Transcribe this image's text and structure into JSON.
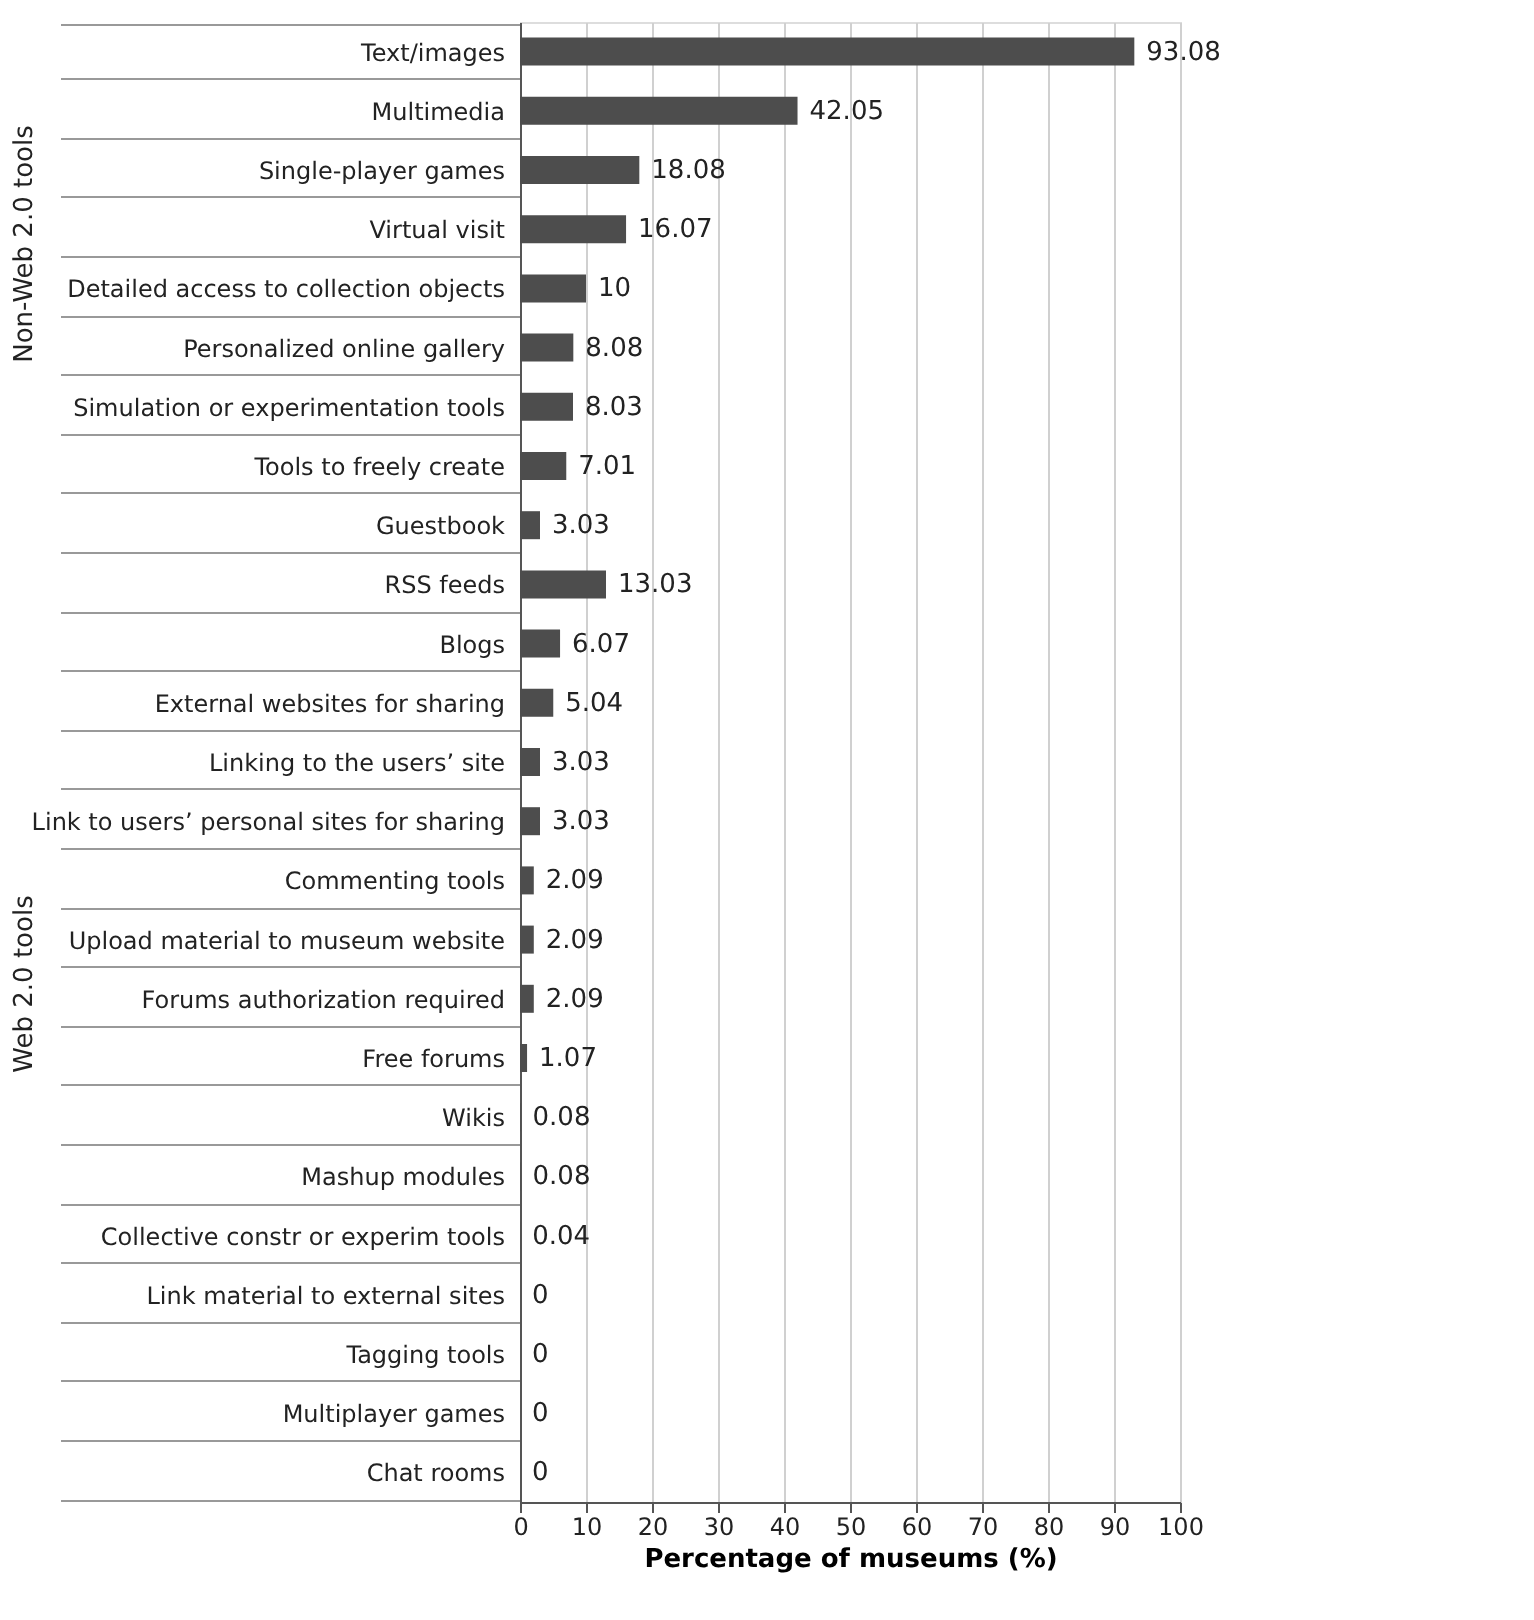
{
  "chart_data": {
    "type": "bar",
    "orientation": "horizontal",
    "xlabel": "Percentage of museums (%)",
    "categories": [
      "Text/images",
      "Multimedia",
      "Single-player games",
      "Virtual visit",
      "Detailed access to collection objects",
      "Personalized online gallery",
      "Simulation or experimentation tools",
      "Tools to freely create",
      "Guestbook",
      "RSS feeds",
      "Blogs",
      "External websites for sharing",
      "Linking to the users’ site",
      "Link to users’ personal sites for sharing",
      "Commenting tools",
      "Upload material to museum website",
      "Forums   authorization required",
      "Free forums",
      "Wikis",
      "Mashup modules",
      "Collective constr or experim tools",
      "Link material to external sites",
      "Tagging tools",
      "Multiplayer games",
      "Chat rooms"
    ],
    "values": [
      93.08,
      42.05,
      18.08,
      16.07,
      10,
      8.08,
      8.03,
      7.01,
      3.03,
      13.03,
      6.07,
      5.04,
      3.03,
      3.03,
      2.09,
      2.09,
      2.09,
      1.07,
      0.08,
      0.08,
      0.04,
      0,
      0,
      0,
      0
    ],
    "color": "#4d4d4d",
    "xlim": [
      0,
      100
    ],
    "xticks": [
      0,
      10,
      20,
      30,
      40,
      50,
      60,
      70,
      80,
      90,
      100
    ],
    "grid": "x",
    "data_labels": true,
    "annotations": [
      "Non-Web 2.0 tools",
      "Web 2.0 tools"
    ]
  }
}
